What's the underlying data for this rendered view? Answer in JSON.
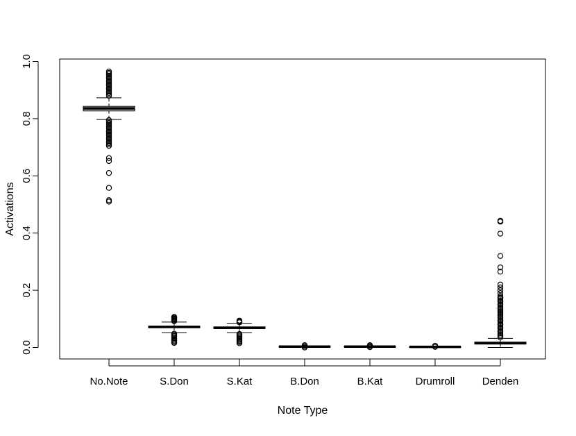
{
  "chart_data": {
    "type": "box",
    "title": "",
    "xlabel": "Note Type",
    "ylabel": "Activations",
    "ylim": [
      -0.04,
      1.0
    ],
    "yticks": [
      0.0,
      0.2,
      0.4,
      0.6,
      0.8,
      1.0
    ],
    "ytick_labels": [
      "0.0",
      "0.2",
      "0.4",
      "0.6",
      "0.8",
      "1.0"
    ],
    "categories": [
      "No.Note",
      "S.Don",
      "S.Kat",
      "B.Don",
      "B.Kat",
      "Drumroll",
      "Denden"
    ],
    "boxes": [
      {
        "name": "No.Note",
        "whisker_low": 0.797,
        "q1": 0.827,
        "median": 0.836,
        "q3": 0.843,
        "whisker_high": 0.873,
        "outliers": [
          0.51,
          0.515,
          0.558,
          0.61,
          0.652,
          0.662,
          0.705,
          0.71,
          0.715,
          0.72,
          0.725,
          0.73,
          0.735,
          0.74,
          0.745,
          0.75,
          0.755,
          0.76,
          0.765,
          0.77,
          0.775,
          0.78,
          0.785,
          0.79,
          0.795,
          0.88,
          0.885,
          0.89,
          0.895,
          0.9,
          0.905,
          0.91,
          0.915,
          0.92,
          0.925,
          0.93,
          0.935,
          0.94,
          0.945,
          0.95,
          0.955,
          0.96,
          0.965
        ]
      },
      {
        "name": "S.Don",
        "whisker_low": 0.052,
        "q1": 0.069,
        "median": 0.072,
        "q3": 0.075,
        "whisker_high": 0.089,
        "outliers": [
          0.016,
          0.02,
          0.024,
          0.028,
          0.032,
          0.036,
          0.04,
          0.044,
          0.048,
          0.092,
          0.095,
          0.098,
          0.101,
          0.104,
          0.107
        ]
      },
      {
        "name": "S.Kat",
        "whisker_low": 0.052,
        "q1": 0.066,
        "median": 0.069,
        "q3": 0.072,
        "whisker_high": 0.085,
        "outliers": [
          0.015,
          0.019,
          0.023,
          0.027,
          0.031,
          0.035,
          0.039,
          0.043,
          0.047,
          0.088,
          0.091,
          0.094
        ]
      },
      {
        "name": "B.Don",
        "whisker_low": 0.0,
        "q1": 0.002,
        "median": 0.003,
        "q3": 0.004,
        "whisker_high": 0.006,
        "outliers": [
          0.0,
          0.004,
          0.008
        ]
      },
      {
        "name": "B.Kat",
        "whisker_low": 0.0,
        "q1": 0.002,
        "median": 0.003,
        "q3": 0.004,
        "whisker_high": 0.006,
        "outliers": [
          0.001,
          0.005,
          0.008
        ]
      },
      {
        "name": "Drumroll",
        "whisker_low": 0.0,
        "q1": 0.001,
        "median": 0.002,
        "q3": 0.003,
        "whisker_high": 0.005,
        "outliers": [
          0.002,
          0.006
        ]
      },
      {
        "name": "Denden",
        "whisker_low": 0.0,
        "q1": 0.012,
        "median": 0.015,
        "q3": 0.019,
        "whisker_high": 0.032,
        "outliers": [
          0.035,
          0.04,
          0.045,
          0.05,
          0.055,
          0.06,
          0.065,
          0.07,
          0.075,
          0.08,
          0.085,
          0.09,
          0.095,
          0.1,
          0.105,
          0.11,
          0.115,
          0.12,
          0.125,
          0.13,
          0.135,
          0.14,
          0.145,
          0.15,
          0.155,
          0.16,
          0.165,
          0.17,
          0.175,
          0.18,
          0.19,
          0.2,
          0.21,
          0.22,
          0.265,
          0.28,
          0.32,
          0.398,
          0.44,
          0.443
        ]
      }
    ]
  }
}
